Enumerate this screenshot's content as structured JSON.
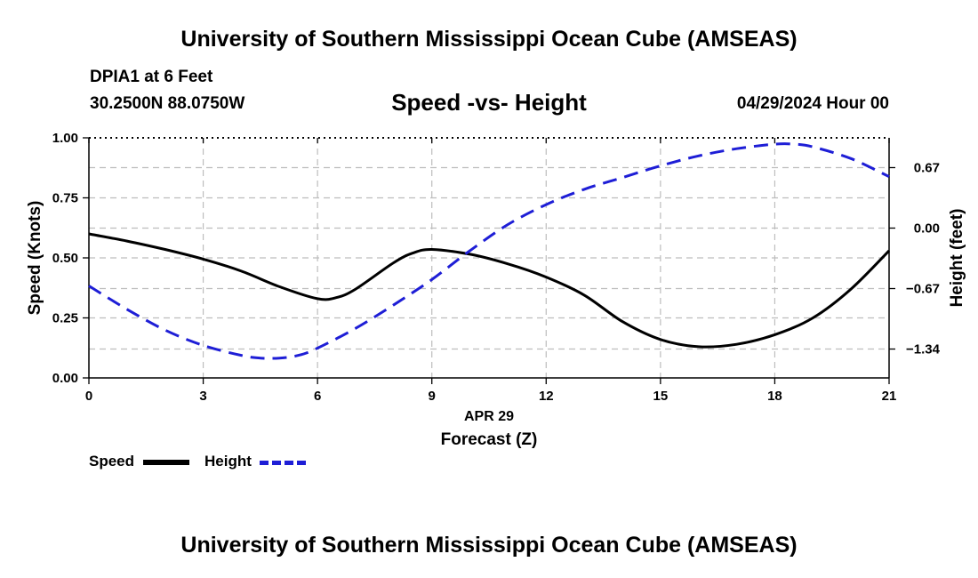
{
  "page": {
    "title_top": "University of Southern Mississippi Ocean Cube (AMSEAS)",
    "title_bottom": "University of Southern Mississippi Ocean Cube (AMSEAS)",
    "station": "DPIA1 at 6 Feet",
    "coordinates": "30.2500N  88.0750W",
    "datetime": "04/29/2024 Hour 00"
  },
  "chart_data": {
    "type": "line",
    "title": "Speed -vs- Height",
    "xlabel": "Forecast (Z)",
    "xdate": "APR 29",
    "ylabel": "Speed (Knots)",
    "y2label": "Height (feet)",
    "xlim": [
      0,
      21
    ],
    "ylim": [
      0,
      1
    ],
    "y2lim": [
      -1.66,
      1.0
    ],
    "xticks": [
      0,
      3,
      6,
      9,
      12,
      15,
      18,
      21
    ],
    "xtick_labels": [
      "0",
      "3",
      "6",
      "9",
      "12",
      "15",
      "18",
      "21"
    ],
    "yticks": [
      0,
      0.25,
      0.5,
      0.75,
      1.0
    ],
    "ytick_labels": [
      "0.00",
      "0.25",
      "0.50",
      "0.75",
      "1.00"
    ],
    "y2ticks": [
      -1.34,
      -0.67,
      0.0,
      0.67
    ],
    "y2tick_labels": [
      "−1.34",
      "−0.67",
      "0.00",
      "0.67"
    ],
    "grid": true,
    "series": [
      {
        "name": "Speed",
        "axis": "left",
        "color": "#000000",
        "style": "solid",
        "x": [
          0,
          1,
          2,
          3,
          4,
          5,
          6,
          6.5,
          7,
          8,
          8.5,
          9,
          10,
          11,
          12,
          13,
          14,
          15,
          16,
          17,
          18,
          19,
          20,
          21
        ],
        "values": [
          0.6,
          0.57,
          0.535,
          0.495,
          0.445,
          0.38,
          0.33,
          0.335,
          0.37,
          0.48,
          0.52,
          0.535,
          0.515,
          0.475,
          0.42,
          0.345,
          0.235,
          0.16,
          0.13,
          0.14,
          0.18,
          0.25,
          0.37,
          0.53
        ]
      },
      {
        "name": "Height",
        "axis": "right",
        "color": "#1e1ed6",
        "style": "dashed",
        "x": [
          0,
          1,
          2,
          3,
          4,
          4.5,
          5,
          5.5,
          6,
          7,
          8,
          9,
          10,
          11,
          12,
          13,
          14,
          15,
          16,
          17,
          18,
          18.5,
          19,
          20,
          21
        ],
        "values": [
          -0.64,
          -0.9,
          -1.13,
          -1.3,
          -1.41,
          -1.44,
          -1.44,
          -1.41,
          -1.33,
          -1.11,
          -0.85,
          -0.57,
          -0.25,
          0.04,
          0.26,
          0.43,
          0.56,
          0.69,
          0.8,
          0.88,
          0.93,
          0.93,
          0.9,
          0.77,
          0.57
        ]
      }
    ]
  }
}
